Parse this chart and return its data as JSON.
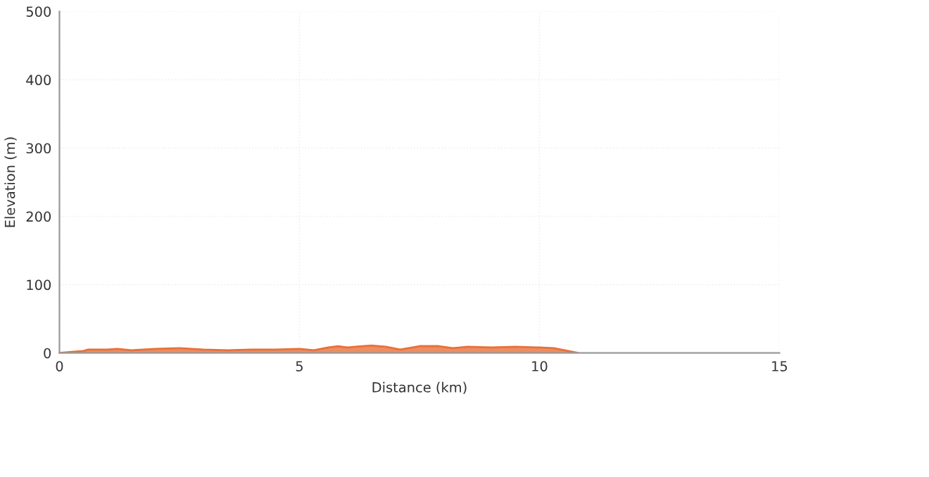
{
  "chart_data": {
    "type": "area",
    "xlabel": "Distance (km)",
    "ylabel": "Elevation (m)",
    "x": [
      0,
      0.3,
      0.5,
      0.6,
      1.0,
      1.2,
      1.5,
      2.0,
      2.5,
      3.0,
      3.5,
      4.0,
      4.5,
      5.0,
      5.3,
      5.6,
      5.8,
      6.0,
      6.3,
      6.5,
      6.8,
      7.1,
      7.5,
      7.9,
      8.2,
      8.5,
      9.0,
      9.5,
      10.0,
      10.3,
      10.6,
      10.8
    ],
    "series": [
      {
        "color": "#e8703a",
        "values": [
          0,
          2,
          3,
          5,
          5,
          6,
          4,
          6,
          7,
          5,
          4,
          5,
          5,
          6,
          4,
          8,
          10,
          8,
          10,
          11,
          9,
          5,
          10,
          10,
          7,
          9,
          8,
          9,
          8,
          7,
          3,
          0
        ]
      }
    ],
    "xlim": [
      0,
      15
    ],
    "ylim": [
      0,
      500
    ],
    "xticks": [
      0,
      5,
      10,
      15
    ],
    "yticks": [
      0,
      100,
      200,
      300,
      400,
      500
    ],
    "grid": true
  }
}
